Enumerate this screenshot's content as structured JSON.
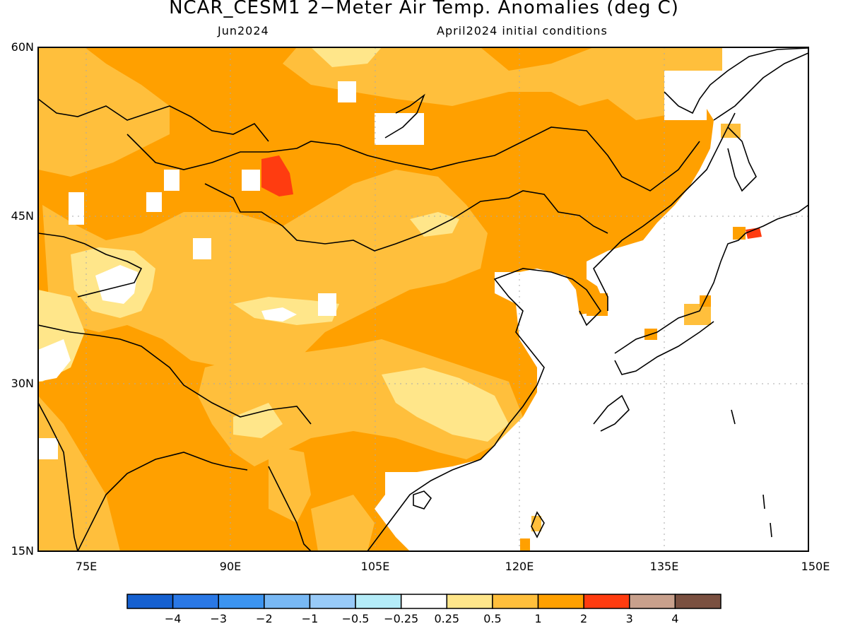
{
  "title": "NCAR_CESM1 2−Meter Air Temp. Anomalies (deg C)",
  "subtitle_left": "Jun2024",
  "subtitle_right": "April2024 initial conditions",
  "map": {
    "lon_range": [
      70,
      150
    ],
    "lat_range": [
      15,
      60
    ],
    "lat_labels": [
      "60N",
      "45N",
      "30N",
      "15N"
    ],
    "lon_labels": [
      "75E",
      "90E",
      "105E",
      "120E",
      "135E",
      "150E"
    ],
    "grid": "dotted every 15 degrees"
  },
  "colorbar": {
    "colors": [
      "#1560d0",
      "#2a78e6",
      "#3c94f0",
      "#78b8f4",
      "#98caf8",
      "#b4ecf8",
      "#ffffff",
      "#ffe68a",
      "#ffbf3c",
      "#ffa000",
      "#ff3c10",
      "#c8a08c",
      "#7a5040"
    ],
    "labels": [
      "−4",
      "−3",
      "−2",
      "−1",
      "−0.5",
      "−0.25",
      "0.25",
      "0.5",
      "1",
      "2",
      "3",
      "4"
    ]
  }
}
